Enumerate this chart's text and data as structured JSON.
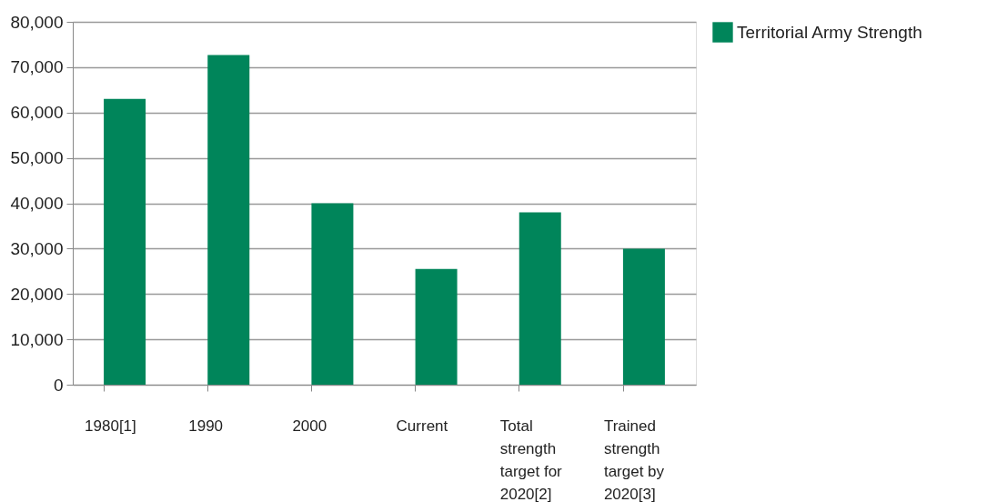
{
  "chart_data": {
    "type": "bar",
    "categories": [
      "1980[1]",
      "1990",
      "2000",
      "Current",
      "Total strength target for 2020[2]",
      "Trained strength target by 2020[3]"
    ],
    "series": [
      {
        "name": "Territorial Army Strength",
        "color": "#00855a",
        "values": [
          63000,
          72700,
          40000,
          25500,
          38000,
          30000
        ]
      }
    ],
    "ylim": [
      0,
      80000
    ],
    "yticks": [
      {
        "value": 0,
        "label": "0"
      },
      {
        "value": 10000,
        "label": "10,000"
      },
      {
        "value": 20000,
        "label": "20,000"
      },
      {
        "value": 30000,
        "label": "30,000"
      },
      {
        "value": 40000,
        "label": "40,000"
      },
      {
        "value": 50000,
        "label": "50,000"
      },
      {
        "value": 60000,
        "label": "60,000"
      },
      {
        "value": 70000,
        "label": "70,000"
      },
      {
        "value": 80000,
        "label": "80,000"
      }
    ],
    "grid": "y",
    "legend": "right"
  }
}
